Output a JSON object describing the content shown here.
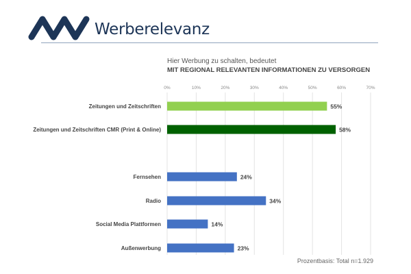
{
  "header": {
    "brand": "Werberelevanz",
    "logo_text": "MA"
  },
  "chart_data": {
    "type": "bar",
    "orientation": "horizontal",
    "subtitle": "Hier Werbung zu schalten, bedeutet",
    "title": "MIT REGIONAL RELEVANTEN INFORMATIONEN ZU VERSORGEN",
    "categories": [
      "Zeitungen und Zeitschriften",
      "Zeitungen und Zeitschriften CMR (Print & Online)",
      "Fernsehen",
      "Radio",
      "Social Media Plattformen",
      "Außenwerbung"
    ],
    "values": [
      55,
      58,
      24,
      34,
      14,
      23
    ],
    "value_labels": [
      "55%",
      "58%",
      "24%",
      "34%",
      "14%",
      "23%"
    ],
    "colors": [
      "#92d050",
      "#006100",
      "#4472c4",
      "#4472c4",
      "#4472c4",
      "#4472c4"
    ],
    "xlim": [
      0,
      70
    ],
    "ticks": [
      "0%",
      "10%",
      "20%",
      "30%",
      "40%",
      "50%",
      "60%",
      "70%"
    ],
    "grid": true,
    "footnote": "Prozentbasis: Total n=1.929"
  }
}
